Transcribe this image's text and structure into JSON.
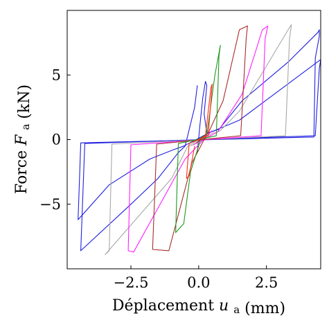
{
  "chart_data": {
    "type": "line",
    "title": "",
    "xlabel": {
      "main": "Déplacement",
      "var": "u",
      "sub": "a",
      "unit": "(mm)"
    },
    "ylabel": {
      "main": "Force",
      "var": "F",
      "sub": "a",
      "unit": "(kN)"
    },
    "xlim": [
      -4.85,
      4.5
    ],
    "ylim": [
      -10.0,
      10.0
    ],
    "x_ticks": [
      -2.5,
      0.0,
      2.5
    ],
    "x_tick_labels": [
      "−2.5",
      "0.0",
      "2.5"
    ],
    "y_ticks": [
      5,
      0,
      -5
    ],
    "y_tick_labels": [
      "5",
      "0",
      "−5"
    ],
    "grid": false,
    "legend": "none",
    "series": [
      {
        "color": "#1f1fe0",
        "points": [
          [
            -0.05,
            -1.0
          ],
          [
            0.05,
            1.2
          ],
          [
            0.15,
            3.2
          ],
          [
            0.25,
            4.5
          ],
          [
            0.3,
            4.2
          ],
          [
            0.2,
            2.0
          ],
          [
            0.3,
            0.5
          ],
          [
            0.75,
            0.8
          ],
          [
            1.6,
            3.0
          ],
          [
            3.3,
            6.0
          ],
          [
            4.4,
            8.3
          ],
          [
            4.45,
            8.5
          ],
          [
            4.45,
            8.0
          ],
          [
            4.3,
            6.3
          ],
          [
            4.25,
            0.2
          ],
          [
            -4.35,
            -0.25
          ],
          [
            -4.45,
            -6.2
          ],
          [
            -3.3,
            -3.5
          ],
          [
            -1.8,
            -1.5
          ],
          [
            -0.95,
            -0.8
          ],
          [
            -0.55,
            -0.5
          ],
          [
            0.35,
            0.5
          ],
          [
            1.5,
            1.5
          ],
          [
            4.5,
            6.2
          ],
          [
            4.45,
            5.5
          ],
          [
            4.3,
            0.3
          ],
          [
            -4.2,
            -0.3
          ],
          [
            -4.35,
            -8.6
          ],
          [
            -2.5,
            -5.0
          ],
          [
            -1.5,
            -3.0
          ],
          [
            -0.75,
            -1.0
          ],
          [
            -0.5,
            -0.5
          ],
          [
            -0.15,
            2.5
          ],
          [
            -0.05,
            4.2
          ]
        ]
      },
      {
        "color": "#a8a8a8",
        "points": [
          [
            -0.3,
            -0.5
          ],
          [
            0.8,
            0.7
          ],
          [
            1.5,
            2.2
          ],
          [
            3.3,
            8.5
          ],
          [
            3.42,
            8.9
          ],
          [
            3.35,
            7.8
          ],
          [
            3.2,
            0.3
          ],
          [
            -3.2,
            -0.35
          ],
          [
            -3.3,
            -8.6
          ],
          [
            -3.45,
            -8.9
          ],
          [
            -1.0,
            -3.0
          ],
          [
            -0.4,
            -0.5
          ],
          [
            0.6,
            0.6
          ]
        ]
      },
      {
        "color": "#ff1fff",
        "points": [
          [
            -0.2,
            -0.4
          ],
          [
            0.7,
            0.6
          ],
          [
            1.6,
            3.5
          ],
          [
            2.35,
            8.5
          ],
          [
            2.55,
            8.8
          ],
          [
            2.45,
            7.8
          ],
          [
            2.3,
            0.3
          ],
          [
            -2.5,
            -0.4
          ],
          [
            -2.6,
            -8.6
          ],
          [
            -2.4,
            -8.7
          ],
          [
            -0.5,
            -1.5
          ],
          [
            0.5,
            0.7
          ]
        ]
      },
      {
        "color": "#aa2a2a",
        "points": [
          [
            -0.1,
            -0.3
          ],
          [
            0.35,
            0.5
          ],
          [
            0.9,
            3.0
          ],
          [
            1.5,
            8.5
          ],
          [
            1.8,
            8.8
          ],
          [
            1.75,
            7.8
          ],
          [
            1.55,
            0.3
          ],
          [
            -1.55,
            -0.35
          ],
          [
            -1.7,
            -8.5
          ],
          [
            -1.1,
            -8.6
          ],
          [
            -0.25,
            -1.8
          ],
          [
            0.35,
            0.6
          ]
        ]
      },
      {
        "color": "#1a9a1a",
        "points": [
          [
            -0.2,
            -0.2
          ],
          [
            0.3,
            0.4
          ],
          [
            0.6,
            5.0
          ],
          [
            0.8,
            7.3
          ],
          [
            0.75,
            6.5
          ],
          [
            0.65,
            0.3
          ],
          [
            -0.75,
            -0.3
          ],
          [
            -0.85,
            -7.2
          ],
          [
            -0.55,
            -6.5
          ],
          [
            -0.3,
            -2.5
          ],
          [
            0.1,
            0.2
          ]
        ]
      },
      {
        "color": "#ff2a1a",
        "points": [
          [
            -0.1,
            -0.1
          ],
          [
            0.25,
            0.3
          ],
          [
            0.45,
            4.0
          ],
          [
            0.5,
            4.3
          ],
          [
            0.45,
            3.0
          ],
          [
            0.35,
            0.3
          ],
          [
            -0.35,
            -0.3
          ],
          [
            -0.45,
            -3.0
          ],
          [
            -0.35,
            -2.8
          ],
          [
            -0.15,
            -0.5
          ]
        ]
      }
    ]
  }
}
